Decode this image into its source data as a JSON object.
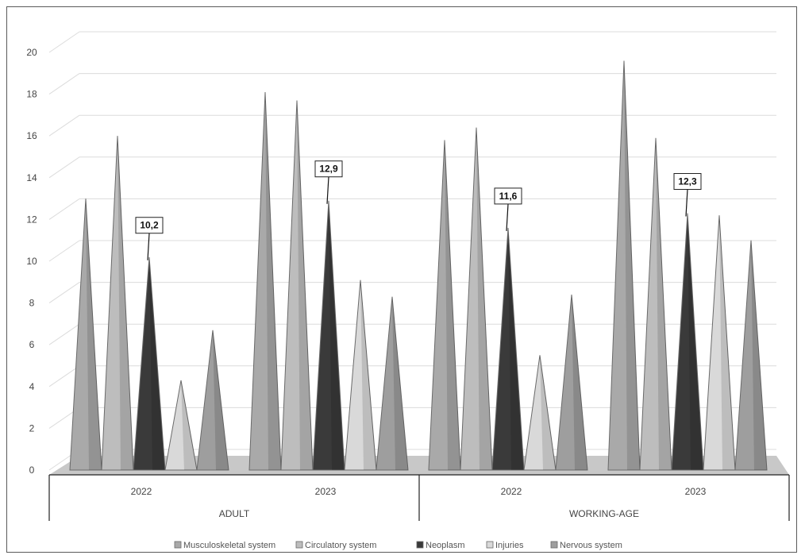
{
  "chart_data": {
    "type": "bar",
    "style": "3d-cone",
    "ylim": [
      0,
      20
    ],
    "yticks": [
      "0",
      "2",
      "4",
      "6",
      "8",
      "10",
      "12",
      "14",
      "16",
      "18",
      "20"
    ],
    "groups": [
      "ADULT",
      "WORKING-AGE"
    ],
    "categories": [
      "2022",
      "2023",
      "2022",
      "2023"
    ],
    "series": [
      {
        "name": "Musculoskeletal system",
        "color": "#a9a9a9",
        "values": [
          13.0,
          18.1,
          15.8,
          19.6
        ]
      },
      {
        "name": "Circulatory system",
        "color": "#bdbdbd",
        "values": [
          16.0,
          17.7,
          16.4,
          15.9
        ]
      },
      {
        "name": "Neoplasm",
        "color": "#3a3a3a",
        "values": [
          10.2,
          12.9,
          11.6,
          12.3
        ]
      },
      {
        "name": "Injuries",
        "color": "#d9d9d9",
        "values": [
          4.3,
          9.1,
          5.5,
          12.2
        ]
      },
      {
        "name": "Nervous system",
        "color": "#9e9e9e",
        "values": [
          6.7,
          8.3,
          8.4,
          11.0
        ]
      }
    ],
    "data_labels": [
      "10,2",
      "12,9",
      "11,6",
      "12,3"
    ],
    "grid": true,
    "legend_position": "bottom"
  }
}
